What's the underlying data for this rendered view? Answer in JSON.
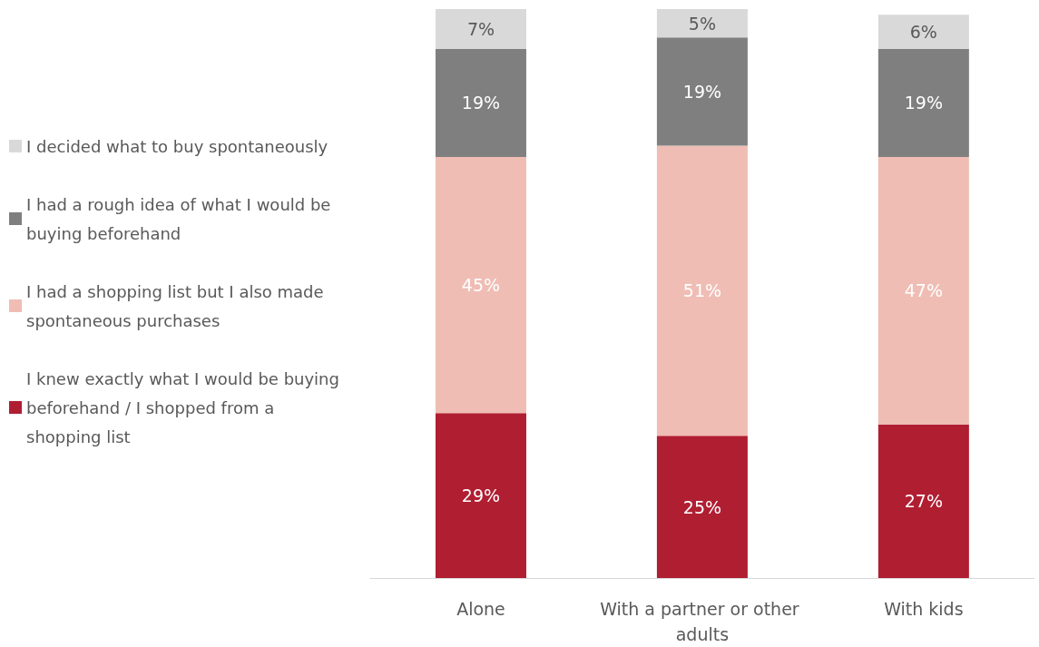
{
  "chart_data": {
    "type": "bar",
    "stacked": true,
    "categories": [
      "Alone",
      "With a partner or other adults",
      "With kids"
    ],
    "series": [
      {
        "name": "I knew exactly what I would be buying beforehand / I shopped from a shopping list",
        "color": "#b01e32",
        "values": [
          29,
          25,
          27
        ],
        "value_labels": [
          "29%",
          "25%",
          "27%"
        ]
      },
      {
        "name": "I had a shopping list but I also made spontaneous purchases",
        "color": "#efbdb4",
        "values": [
          45,
          51,
          47
        ],
        "value_labels": [
          "45%",
          "51%",
          "47%"
        ]
      },
      {
        "name": "I had a rough idea of what I would be buying beforehand",
        "color": "#7f7f7f",
        "values": [
          19,
          19,
          19
        ],
        "value_labels": [
          "19%",
          "19%",
          "19%"
        ]
      },
      {
        "name": "I decided what to buy spontaneously",
        "color": "#d9d9d9",
        "values": [
          7,
          5,
          6
        ],
        "value_labels": [
          "7%",
          "5%",
          "6%"
        ]
      }
    ],
    "legend": "left",
    "tick_labels": "x"
  }
}
